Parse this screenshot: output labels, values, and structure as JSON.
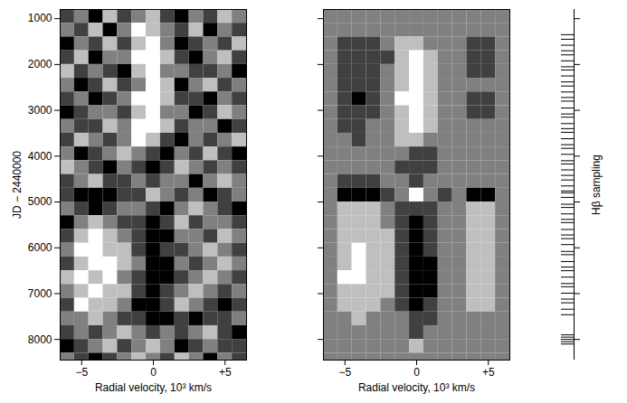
{
  "chart_data": [
    {
      "type": "heatmap",
      "x_label": "Radial velocity, 10³ km/s",
      "y_label": "JD − 2440000",
      "xlim": [
        -6.5,
        6.5
      ],
      "ylim": [
        800,
        8450
      ],
      "xticks": [
        {
          "value": -5,
          "label": "−5"
        },
        0,
        {
          "value": 5,
          "label": "+5"
        }
      ],
      "yticks": [
        1000,
        2000,
        3000,
        4000,
        5000,
        6000,
        7000,
        8000
      ],
      "x_bins": [
        -6.5,
        -5.5,
        -4.5,
        -3.5,
        -2.5,
        -1.5,
        -0.5,
        0.5,
        1.5,
        2.5,
        3.5,
        4.5,
        5.5,
        6.5
      ],
      "y_bins": [
        800,
        1100,
        1400,
        1700,
        2000,
        2300,
        2600,
        2900,
        3200,
        3500,
        3800,
        4100,
        4400,
        4700,
        5000,
        5300,
        5600,
        5900,
        6200,
        6500,
        6800,
        7100,
        7400,
        7700,
        8000,
        8300,
        8450
      ],
      "zlim": [
        0,
        4
      ],
      "cells": [
        [
          1,
          2,
          0,
          3,
          1,
          2,
          3,
          1,
          0,
          2,
          1,
          3,
          2
        ],
        [
          2,
          1,
          3,
          0,
          2,
          4,
          3,
          2,
          1,
          3,
          0,
          2,
          1
        ],
        [
          0,
          2,
          1,
          3,
          1,
          3,
          4,
          2,
          0,
          1,
          2,
          1,
          3
        ],
        [
          1,
          3,
          0,
          2,
          2,
          4,
          4,
          3,
          1,
          0,
          2,
          3,
          1
        ],
        [
          3,
          1,
          2,
          1,
          0,
          3,
          4,
          2,
          2,
          1,
          1,
          2,
          0
        ],
        [
          2,
          0,
          1,
          3,
          1,
          2,
          4,
          3,
          0,
          2,
          3,
          1,
          2
        ],
        [
          1,
          2,
          0,
          1,
          2,
          4,
          4,
          3,
          1,
          1,
          0,
          2,
          1
        ],
        [
          0,
          1,
          2,
          2,
          1,
          3,
          4,
          2,
          2,
          0,
          1,
          3,
          2
        ],
        [
          2,
          1,
          1,
          3,
          2,
          4,
          4,
          3,
          1,
          2,
          2,
          0,
          1
        ],
        [
          1,
          3,
          2,
          1,
          2,
          4,
          3,
          1,
          0,
          2,
          1,
          2,
          3
        ],
        [
          2,
          0,
          1,
          2,
          3,
          2,
          1,
          0,
          2,
          1,
          3,
          1,
          0
        ],
        [
          3,
          2,
          1,
          0,
          2,
          1,
          0,
          1,
          3,
          2,
          1,
          2,
          1
        ],
        [
          1,
          2,
          3,
          1,
          1,
          2,
          1,
          2,
          2,
          0,
          2,
          3,
          2
        ],
        [
          1,
          0,
          0,
          0,
          1,
          1,
          3,
          2,
          1,
          2,
          0,
          1,
          2
        ],
        [
          2,
          1,
          0,
          1,
          2,
          2,
          1,
          0,
          2,
          3,
          2,
          1,
          0
        ],
        [
          0,
          2,
          3,
          2,
          1,
          1,
          0,
          1,
          3,
          1,
          2,
          2,
          1
        ],
        [
          1,
          3,
          4,
          3,
          2,
          1,
          0,
          0,
          2,
          2,
          1,
          3,
          2
        ],
        [
          2,
          4,
          4,
          3,
          3,
          1,
          0,
          1,
          1,
          2,
          3,
          2,
          1
        ],
        [
          1,
          3,
          4,
          4,
          3,
          2,
          0,
          0,
          2,
          1,
          2,
          3,
          2
        ],
        [
          3,
          4,
          3,
          4,
          2,
          1,
          0,
          0,
          1,
          2,
          3,
          2,
          1
        ],
        [
          2,
          3,
          4,
          3,
          3,
          1,
          0,
          1,
          2,
          3,
          2,
          1,
          2
        ],
        [
          1,
          4,
          3,
          3,
          2,
          0,
          0,
          1,
          3,
          2,
          1,
          0,
          1
        ],
        [
          2,
          2,
          3,
          2,
          1,
          1,
          0,
          0,
          1,
          0,
          1,
          1,
          2
        ],
        [
          1,
          2,
          1,
          2,
          3,
          2,
          1,
          2,
          1,
          2,
          3,
          1,
          0
        ],
        [
          0,
          1,
          2,
          3,
          1,
          2,
          3,
          2,
          0,
          1,
          2,
          1,
          1
        ],
        [
          2,
          1,
          0,
          1,
          2,
          3,
          2,
          1,
          3,
          2,
          0,
          2,
          1
        ]
      ]
    },
    {
      "type": "heatmap",
      "x_label": "Radial velocity, 10³ km/s",
      "xlim": [
        -6.5,
        6.5
      ],
      "ylim": [
        800,
        8450
      ],
      "xticks": [
        {
          "value": -5,
          "label": "−5"
        },
        0,
        {
          "value": 5,
          "label": "+5"
        }
      ],
      "yticks": [
        1000,
        2000,
        3000,
        4000,
        5000,
        6000,
        7000,
        8000
      ],
      "tick_labels": "x",
      "x_bins": [
        -6.5,
        -5.5,
        -4.5,
        -3.5,
        -2.5,
        -1.5,
        -0.5,
        0.5,
        1.5,
        2.5,
        3.5,
        4.5,
        5.5,
        6.5
      ],
      "y_bins": [
        800,
        1100,
        1400,
        1700,
        2000,
        2300,
        2600,
        2900,
        3200,
        3500,
        3800,
        4100,
        4400,
        4700,
        5000,
        5300,
        5600,
        5900,
        6200,
        6500,
        6800,
        7100,
        7400,
        7700,
        8000,
        8300,
        8450
      ],
      "zlim": [
        0,
        4
      ],
      "cells": [
        [
          2,
          2,
          2,
          2,
          2,
          2,
          2,
          2,
          2,
          2,
          2,
          2,
          2
        ],
        [
          2,
          2,
          2,
          2,
          2,
          2,
          2,
          2,
          2,
          2,
          2,
          2,
          2
        ],
        [
          2,
          1,
          1,
          1,
          2,
          3,
          3,
          2,
          2,
          2,
          1,
          1,
          2
        ],
        [
          2,
          1,
          1,
          1,
          1,
          3,
          4,
          3,
          2,
          2,
          1,
          1,
          2
        ],
        [
          2,
          1,
          1,
          1,
          2,
          3,
          4,
          3,
          2,
          2,
          1,
          1,
          2
        ],
        [
          2,
          1,
          1,
          1,
          2,
          3,
          4,
          3,
          2,
          2,
          2,
          2,
          2
        ],
        [
          2,
          1,
          0,
          1,
          2,
          4,
          4,
          3,
          2,
          2,
          1,
          1,
          2
        ],
        [
          2,
          1,
          1,
          1,
          2,
          3,
          4,
          3,
          2,
          2,
          1,
          1,
          2
        ],
        [
          2,
          1,
          1,
          2,
          2,
          3,
          4,
          3,
          2,
          2,
          2,
          2,
          2
        ],
        [
          2,
          2,
          1,
          2,
          2,
          3,
          3,
          2,
          2,
          2,
          2,
          2,
          2
        ],
        [
          2,
          2,
          2,
          2,
          2,
          2,
          1,
          1,
          2,
          2,
          2,
          2,
          2
        ],
        [
          2,
          2,
          2,
          2,
          2,
          1,
          1,
          1,
          2,
          2,
          2,
          2,
          2
        ],
        [
          2,
          1,
          1,
          1,
          2,
          2,
          1,
          2,
          2,
          2,
          2,
          2,
          2
        ],
        [
          2,
          0,
          0,
          0,
          1,
          2,
          4,
          2,
          1,
          2,
          0,
          0,
          2
        ],
        [
          2,
          3,
          3,
          3,
          2,
          1,
          1,
          1,
          2,
          2,
          3,
          3,
          2
        ],
        [
          2,
          3,
          3,
          3,
          2,
          1,
          0,
          1,
          2,
          2,
          3,
          3,
          2
        ],
        [
          2,
          3,
          3,
          3,
          3,
          1,
          0,
          1,
          2,
          2,
          3,
          3,
          2
        ],
        [
          2,
          3,
          4,
          3,
          3,
          1,
          0,
          1,
          2,
          2,
          3,
          3,
          2
        ],
        [
          2,
          3,
          4,
          3,
          3,
          1,
          0,
          0,
          2,
          2,
          3,
          3,
          2
        ],
        [
          2,
          4,
          4,
          3,
          3,
          1,
          0,
          0,
          2,
          2,
          3,
          3,
          2
        ],
        [
          2,
          3,
          3,
          3,
          3,
          1,
          0,
          0,
          2,
          2,
          3,
          3,
          2
        ],
        [
          2,
          3,
          3,
          3,
          2,
          1,
          0,
          1,
          2,
          2,
          3,
          3,
          2
        ],
        [
          2,
          2,
          3,
          2,
          2,
          2,
          1,
          1,
          2,
          2,
          2,
          2,
          2
        ],
        [
          2,
          2,
          2,
          2,
          2,
          2,
          1,
          2,
          2,
          2,
          2,
          2,
          2
        ],
        [
          2,
          2,
          2,
          2,
          2,
          2,
          3,
          2,
          2,
          2,
          2,
          2,
          2
        ],
        [
          2,
          2,
          2,
          2,
          2,
          2,
          2,
          2,
          2,
          2,
          2,
          2,
          2
        ]
      ]
    },
    {
      "type": "rug",
      "y_label": "Hβ sampling",
      "ylim": [
        800,
        8450
      ],
      "yticks": [
        1000,
        2000,
        3000,
        4000,
        5000,
        6000,
        7000,
        8000
      ],
      "tick_labels": false,
      "values": [
        1350,
        1450,
        1580,
        1700,
        1790,
        1920,
        2050,
        2120,
        2250,
        2380,
        2470,
        2600,
        2720,
        2800,
        2950,
        3080,
        3150,
        3290,
        3400,
        3480,
        3620,
        3750,
        3830,
        3960,
        4100,
        4170,
        4300,
        4420,
        4520,
        4650,
        4760,
        4800,
        4900,
        5050,
        5120,
        5260,
        5380,
        5450,
        5600,
        5720,
        5800,
        5930,
        6080,
        6150,
        6300,
        6420,
        6500,
        6640,
        6780,
        6850,
        6990,
        7120,
        7200,
        7340,
        7460,
        7900,
        7950,
        8000,
        8050,
        8100
      ]
    }
  ]
}
